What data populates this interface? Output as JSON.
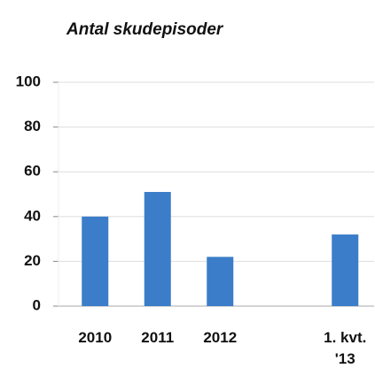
{
  "chart_data": {
    "type": "bar",
    "title": "Antal skudepisoder",
    "categories": [
      "2010",
      "2011",
      "2012",
      null,
      "1. kvt. '13"
    ],
    "values": [
      40,
      51,
      22,
      null,
      32
    ],
    "color": "#3b7dc8",
    "ylim": [
      0,
      100
    ],
    "yticks": [
      0,
      20,
      40,
      60,
      80,
      100
    ],
    "grid": true
  }
}
